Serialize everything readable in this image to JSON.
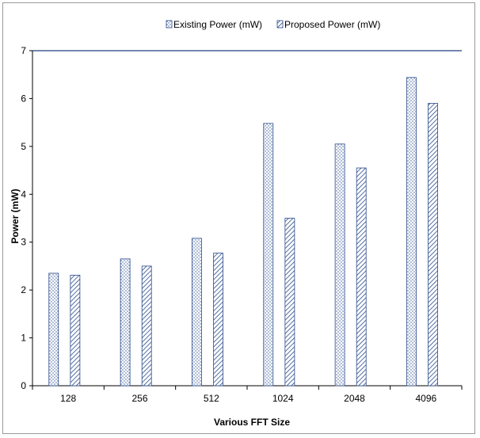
{
  "chart_data": {
    "type": "bar",
    "title": "",
    "xlabel": "Various FFT Size",
    "ylabel": "Power (mW)",
    "categories": [
      "128",
      "256",
      "512",
      "1024",
      "2048",
      "4096"
    ],
    "series": [
      {
        "name": "Existing Power (mW)",
        "values": [
          2.35,
          2.65,
          3.08,
          5.48,
          5.05,
          6.44
        ]
      },
      {
        "name": "Proposed Power (mW)",
        "values": [
          2.31,
          2.5,
          2.77,
          3.5,
          4.55,
          5.9
        ]
      }
    ],
    "ylim": [
      0,
      7
    ],
    "yticks": [
      "0",
      "1",
      "2",
      "3",
      "4",
      "5",
      "6",
      "7"
    ],
    "grid": false,
    "legend_position": "top"
  }
}
